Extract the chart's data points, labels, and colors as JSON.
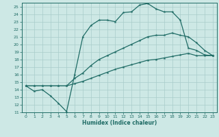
{
  "xlabel": "Humidex (Indice chaleur)",
  "xlim": [
    -0.5,
    23.5
  ],
  "ylim": [
    11,
    25.5
  ],
  "xticks": [
    0,
    1,
    2,
    3,
    4,
    5,
    6,
    7,
    8,
    9,
    10,
    11,
    12,
    13,
    14,
    15,
    16,
    17,
    18,
    19,
    20,
    21,
    22,
    23
  ],
  "yticks": [
    11,
    12,
    13,
    14,
    15,
    16,
    17,
    18,
    19,
    20,
    21,
    22,
    23,
    24,
    25
  ],
  "background_color": "#cde8e5",
  "grid_color": "#a8ccca",
  "line_color": "#1e6b65",
  "line1_x": [
    0,
    1,
    2,
    3,
    4,
    5,
    6,
    7,
    8,
    9,
    10,
    11,
    12,
    13,
    14,
    15,
    16,
    17,
    18,
    19,
    20,
    21,
    22,
    23
  ],
  "line1_y": [
    14.5,
    13.8,
    14.0,
    13.2,
    12.2,
    11.1,
    16.0,
    21.0,
    22.5,
    23.2,
    23.2,
    23.0,
    24.2,
    24.3,
    25.2,
    25.4,
    24.7,
    24.3,
    24.3,
    23.2,
    19.5,
    19.2,
    18.6,
    18.5
  ],
  "line2_x": [
    0,
    1,
    2,
    3,
    4,
    5,
    6,
    7,
    8,
    9,
    10,
    11,
    12,
    13,
    14,
    15,
    16,
    17,
    18,
    19,
    20,
    21,
    22,
    23
  ],
  "line2_y": [
    14.5,
    14.5,
    14.5,
    14.5,
    14.5,
    14.5,
    15.5,
    16.2,
    17.2,
    18.0,
    18.5,
    19.0,
    19.5,
    20.0,
    20.5,
    21.0,
    21.2,
    21.2,
    21.5,
    21.2,
    21.0,
    20.2,
    19.2,
    18.5
  ],
  "line3_x": [
    0,
    1,
    2,
    3,
    4,
    5,
    6,
    7,
    8,
    9,
    10,
    11,
    12,
    13,
    14,
    15,
    16,
    17,
    18,
    19,
    20,
    21,
    22,
    23
  ],
  "line3_y": [
    14.5,
    14.5,
    14.5,
    14.5,
    14.5,
    14.5,
    14.8,
    15.1,
    15.5,
    15.9,
    16.3,
    16.7,
    17.0,
    17.3,
    17.6,
    17.9,
    18.0,
    18.2,
    18.4,
    18.6,
    18.8,
    18.5,
    18.5,
    18.5
  ]
}
